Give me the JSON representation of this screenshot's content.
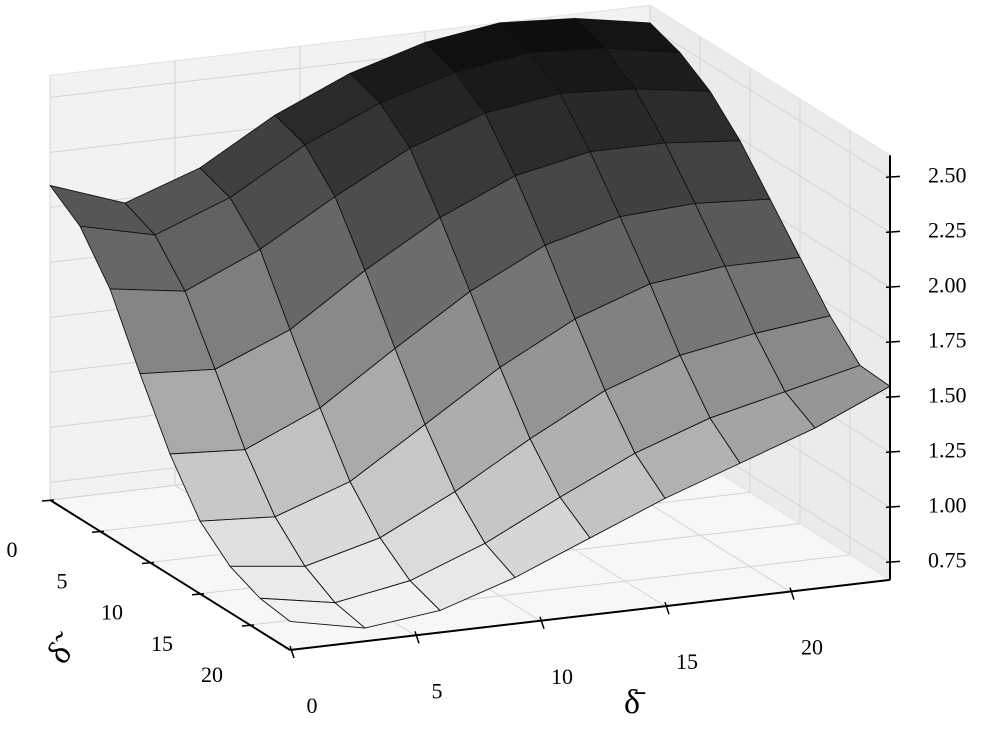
{
  "chart_data": {
    "type": "surface",
    "x_label": "δ̄",
    "y_label": "δ̃",
    "x": [
      0,
      3,
      6,
      9,
      12,
      15,
      18,
      21,
      24
    ],
    "y": [
      0,
      3,
      6,
      9,
      12,
      15,
      18,
      21,
      24
    ],
    "z": [
      [
        2.1,
        1.98,
        2.1,
        2.3,
        2.45,
        2.55,
        2.6,
        2.58,
        2.52
      ],
      [
        2.0,
        1.92,
        2.05,
        2.25,
        2.4,
        2.5,
        2.55,
        2.53,
        2.47
      ],
      [
        1.8,
        1.75,
        1.9,
        2.1,
        2.28,
        2.4,
        2.45,
        2.43,
        2.38
      ],
      [
        1.5,
        1.48,
        1.62,
        1.85,
        2.05,
        2.2,
        2.27,
        2.27,
        2.24
      ],
      [
        1.22,
        1.2,
        1.35,
        1.58,
        1.8,
        1.97,
        2.06,
        2.08,
        2.06
      ],
      [
        1.0,
        0.98,
        1.1,
        1.32,
        1.54,
        1.72,
        1.84,
        1.88,
        1.88
      ],
      [
        0.88,
        0.84,
        0.93,
        1.1,
        1.3,
        1.48,
        1.6,
        1.66,
        1.7
      ],
      [
        0.82,
        0.76,
        0.82,
        0.95,
        1.12,
        1.28,
        1.4,
        1.48,
        1.56
      ],
      [
        0.8,
        0.73,
        0.77,
        0.88,
        1.02,
        1.16,
        1.28,
        1.4,
        1.55
      ]
    ],
    "xlim": [
      0,
      24
    ],
    "ylim": [
      0,
      24
    ],
    "zlim": [
      0.67,
      2.6
    ],
    "xticks": [
      0,
      5,
      10,
      15,
      20
    ],
    "yticks": [
      0,
      5,
      10,
      15,
      20
    ],
    "zticks": [
      0.75,
      {
        "value": 1.0,
        "label": "1.00"
      },
      1.25,
      {
        "value": 1.5,
        "label": "1.50"
      },
      1.75,
      {
        "value": 2.0,
        "label": "2.00"
      },
      2.25,
      {
        "value": 2.5,
        "label": "2.50"
      }
    ],
    "colormap": [
      "#ffffff",
      "#0a0a0a"
    ],
    "grid": true
  }
}
